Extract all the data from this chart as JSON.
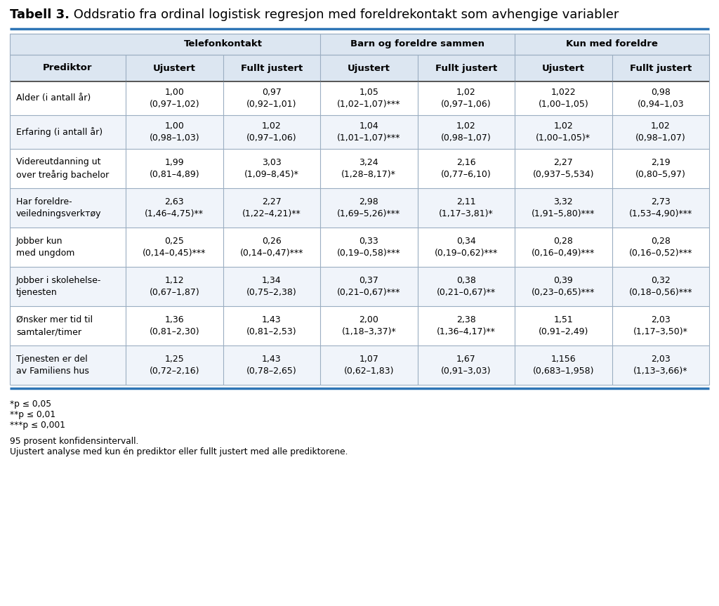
{
  "title_bold": "Tabell 3.",
  "title_normal": " Oddsratio fra ordinal logistisk regresjon med foreldrekontakt som avhengige variabler",
  "group_labels": [
    "Telefonkontakt",
    "Barn og foreldre sammen",
    "Kun med foreldre"
  ],
  "col_headers": [
    "Prediktor",
    "Ujustert",
    "Fullt justert",
    "Ujustert",
    "Fullt justert",
    "Ujustert",
    "Fullt justert"
  ],
  "rows": [
    {
      "label": "Alder (i antall år)",
      "values": [
        "1,00\n(0,97–1,02)",
        "0,97\n(0,92–1,01)",
        "1,05\n(1,02–1,07)***",
        "1,02\n(0,97–1,06)",
        "1,022\n(1,00–1,05)",
        "0,98\n(0,94–1,03"
      ]
    },
    {
      "label": "Erfaring (i antall år)",
      "values": [
        "1,00\n(0,98–1,03)",
        "1,02\n(0,97–1,06)",
        "1,04\n(1,01–1,07)***",
        "1,02\n(0,98–1,07)",
        "1,02\n(1,00–1,05)*",
        "1,02\n(0,98–1,07)"
      ]
    },
    {
      "label": "Videreutdanning ut\nover treårig bachelor",
      "values": [
        "1,99\n(0,81–4,89)",
        "3,03\n(1,09–8,45)*",
        "3,24\n(1,28–8,17)*",
        "2,16\n(0,77–6,10)",
        "2,27\n(0,937–5,534)",
        "2,19\n(0,80–5,97)"
      ]
    },
    {
      "label": "Har foreldre-\nveiledningsverkтøy",
      "values": [
        "2,63\n(1,46–4,75)**",
        "2,27\n(1,22–4,21)**",
        "2,98\n(1,69–5,26)***",
        "2,11\n(1,17–3,81)*",
        "3,32\n(1,91–5,80)***",
        "2,73\n(1,53–4,90)***"
      ]
    },
    {
      "label": "Jobber kun\nmed ungdom",
      "values": [
        "0,25\n(0,14–0,45)***",
        "0,26\n(0,14–0,47)***",
        "0,33\n(0,19–0,58)***",
        "0,34\n(0,19–0,62)***",
        "0,28\n(0,16–0,49)***",
        "0,28\n(0,16–0,52)***"
      ]
    },
    {
      "label": "Jobber i skolehelse-\ntjenesten",
      "values": [
        "1,12\n(0,67–1,87)",
        "1,34\n(0,75–2,38)",
        "0,37\n(0,21–0,67)***",
        "0,38\n(0,21–0,67)**",
        "0,39\n(0,23–0,65)***",
        "0,32\n(0,18–0,56)***"
      ]
    },
    {
      "label": "Ønsker mer tid til\nsamtaler/timer",
      "values": [
        "1,36\n(0,81–2,30)",
        "1,43\n(0,81–2,53)",
        "2,00\n(1,18–3,37)*",
        "2,38\n(1,36–4,17)**",
        "1,51\n(0,91–2,49)",
        "2,03\n(1,17–3,50)*"
      ]
    },
    {
      "label": "Tjenesten er del\nav Familiens hus",
      "values": [
        "1,25\n(0,72–2,16)",
        "1,43\n(0,78–2,65)",
        "1,07\n(0,62–1,83)",
        "1,67\n(0,91–3,03)",
        "1,156\n(0,683–1,958)",
        "2,03\n(1,13–3,66)*"
      ]
    }
  ],
  "footnotes": [
    "*p ≤ 0,05",
    "**p ≤ 0,01",
    "***p ≤ 0,001",
    "",
    "95 prosent konfidensintervall.",
    "Ujustert analyse med kun én prediktor eller fullt justert med alle prediktorene."
  ],
  "header_bg": "#dce6f1",
  "group_bg": "#dce6f1",
  "row_bg_odd": "#ffffff",
  "row_bg_even": "#f0f4fa",
  "border_color": "#9baec2",
  "title_line_color": "#2e75b6",
  "text_color": "#000000",
  "header_font_size": 9.5,
  "cell_font_size": 9.0,
  "title_font_size": 13
}
